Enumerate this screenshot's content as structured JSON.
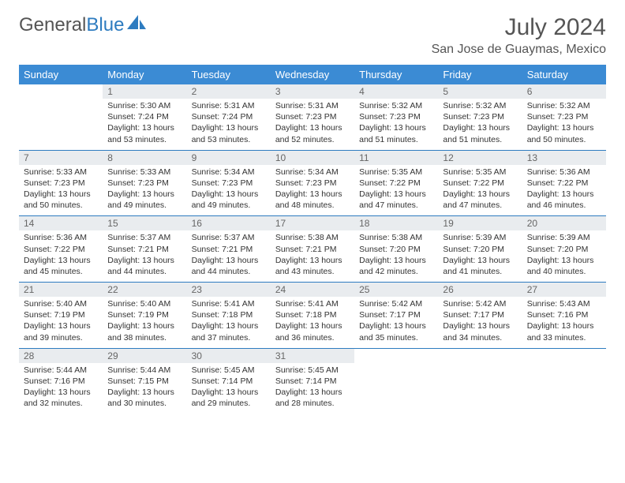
{
  "brand": {
    "part1": "General",
    "part2": "Blue"
  },
  "title": "July 2024",
  "location": "San Jose de Guaymas, Mexico",
  "colors": {
    "header_bg": "#3b8bd4",
    "daynum_bg": "#e9ecef",
    "row_border": "#2e7cc0",
    "brand_blue": "#2e7cc0",
    "text": "#333333"
  },
  "typography": {
    "body_pt": 10.5,
    "header_pt": 13,
    "title_pt": 30,
    "location_pt": 16
  },
  "layout": {
    "columns": 7,
    "rows": 5,
    "start_offset": 1
  },
  "weekdays": [
    "Sunday",
    "Monday",
    "Tuesday",
    "Wednesday",
    "Thursday",
    "Friday",
    "Saturday"
  ],
  "days": [
    {
      "n": 1,
      "sunrise": "5:30 AM",
      "sunset": "7:24 PM",
      "daylight": "13 hours and 53 minutes."
    },
    {
      "n": 2,
      "sunrise": "5:31 AM",
      "sunset": "7:24 PM",
      "daylight": "13 hours and 53 minutes."
    },
    {
      "n": 3,
      "sunrise": "5:31 AM",
      "sunset": "7:23 PM",
      "daylight": "13 hours and 52 minutes."
    },
    {
      "n": 4,
      "sunrise": "5:32 AM",
      "sunset": "7:23 PM",
      "daylight": "13 hours and 51 minutes."
    },
    {
      "n": 5,
      "sunrise": "5:32 AM",
      "sunset": "7:23 PM",
      "daylight": "13 hours and 51 minutes."
    },
    {
      "n": 6,
      "sunrise": "5:32 AM",
      "sunset": "7:23 PM",
      "daylight": "13 hours and 50 minutes."
    },
    {
      "n": 7,
      "sunrise": "5:33 AM",
      "sunset": "7:23 PM",
      "daylight": "13 hours and 50 minutes."
    },
    {
      "n": 8,
      "sunrise": "5:33 AM",
      "sunset": "7:23 PM",
      "daylight": "13 hours and 49 minutes."
    },
    {
      "n": 9,
      "sunrise": "5:34 AM",
      "sunset": "7:23 PM",
      "daylight": "13 hours and 49 minutes."
    },
    {
      "n": 10,
      "sunrise": "5:34 AM",
      "sunset": "7:23 PM",
      "daylight": "13 hours and 48 minutes."
    },
    {
      "n": 11,
      "sunrise": "5:35 AM",
      "sunset": "7:22 PM",
      "daylight": "13 hours and 47 minutes."
    },
    {
      "n": 12,
      "sunrise": "5:35 AM",
      "sunset": "7:22 PM",
      "daylight": "13 hours and 47 minutes."
    },
    {
      "n": 13,
      "sunrise": "5:36 AM",
      "sunset": "7:22 PM",
      "daylight": "13 hours and 46 minutes."
    },
    {
      "n": 14,
      "sunrise": "5:36 AM",
      "sunset": "7:22 PM",
      "daylight": "13 hours and 45 minutes."
    },
    {
      "n": 15,
      "sunrise": "5:37 AM",
      "sunset": "7:21 PM",
      "daylight": "13 hours and 44 minutes."
    },
    {
      "n": 16,
      "sunrise": "5:37 AM",
      "sunset": "7:21 PM",
      "daylight": "13 hours and 44 minutes."
    },
    {
      "n": 17,
      "sunrise": "5:38 AM",
      "sunset": "7:21 PM",
      "daylight": "13 hours and 43 minutes."
    },
    {
      "n": 18,
      "sunrise": "5:38 AM",
      "sunset": "7:20 PM",
      "daylight": "13 hours and 42 minutes."
    },
    {
      "n": 19,
      "sunrise": "5:39 AM",
      "sunset": "7:20 PM",
      "daylight": "13 hours and 41 minutes."
    },
    {
      "n": 20,
      "sunrise": "5:39 AM",
      "sunset": "7:20 PM",
      "daylight": "13 hours and 40 minutes."
    },
    {
      "n": 21,
      "sunrise": "5:40 AM",
      "sunset": "7:19 PM",
      "daylight": "13 hours and 39 minutes."
    },
    {
      "n": 22,
      "sunrise": "5:40 AM",
      "sunset": "7:19 PM",
      "daylight": "13 hours and 38 minutes."
    },
    {
      "n": 23,
      "sunrise": "5:41 AM",
      "sunset": "7:18 PM",
      "daylight": "13 hours and 37 minutes."
    },
    {
      "n": 24,
      "sunrise": "5:41 AM",
      "sunset": "7:18 PM",
      "daylight": "13 hours and 36 minutes."
    },
    {
      "n": 25,
      "sunrise": "5:42 AM",
      "sunset": "7:17 PM",
      "daylight": "13 hours and 35 minutes."
    },
    {
      "n": 26,
      "sunrise": "5:42 AM",
      "sunset": "7:17 PM",
      "daylight": "13 hours and 34 minutes."
    },
    {
      "n": 27,
      "sunrise": "5:43 AM",
      "sunset": "7:16 PM",
      "daylight": "13 hours and 33 minutes."
    },
    {
      "n": 28,
      "sunrise": "5:44 AM",
      "sunset": "7:16 PM",
      "daylight": "13 hours and 32 minutes."
    },
    {
      "n": 29,
      "sunrise": "5:44 AM",
      "sunset": "7:15 PM",
      "daylight": "13 hours and 30 minutes."
    },
    {
      "n": 30,
      "sunrise": "5:45 AM",
      "sunset": "7:14 PM",
      "daylight": "13 hours and 29 minutes."
    },
    {
      "n": 31,
      "sunrise": "5:45 AM",
      "sunset": "7:14 PM",
      "daylight": "13 hours and 28 minutes."
    }
  ],
  "labels": {
    "sunrise": "Sunrise:",
    "sunset": "Sunset:",
    "daylight": "Daylight:"
  }
}
